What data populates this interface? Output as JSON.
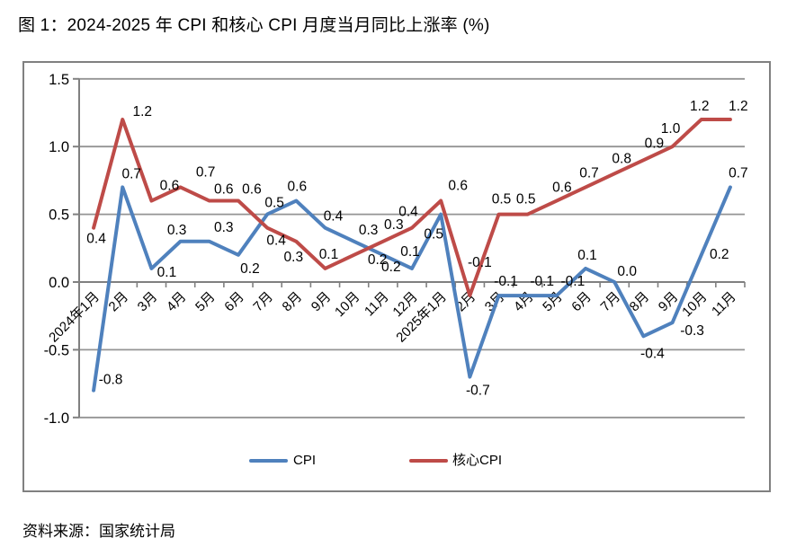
{
  "page": {
    "title": "图 1：2024-2025 年 CPI 和核心 CPI 月度当月同比上涨率 (%)",
    "source": "资料来源：国家统计局"
  },
  "chart_data": {
    "type": "line",
    "title": "",
    "categories": [
      "2024年1月",
      "2月",
      "3月",
      "4月",
      "5月",
      "6月",
      "7月",
      "8月",
      "9月",
      "10月",
      "11月",
      "12月",
      "2025年1月",
      "2月",
      "3月",
      "4月",
      "5月",
      "6月",
      "7月",
      "8月",
      "9月",
      "10月",
      "11月"
    ],
    "series": [
      {
        "name": "CPI",
        "color": "#4F81BD",
        "values": [
          -0.8,
          0.7,
          0.1,
          0.3,
          0.3,
          0.2,
          0.5,
          0.6,
          0.4,
          0.3,
          0.2,
          0.1,
          0.5,
          -0.7,
          -0.1,
          -0.1,
          -0.1,
          0.1,
          0.0,
          -0.4,
          -0.3,
          0.2,
          0.7
        ],
        "label_offsets": [
          [
            19,
            -7
          ],
          [
            10,
            -10
          ],
          [
            17,
            9
          ],
          [
            -4,
            -8
          ],
          [
            16,
            -11
          ],
          [
            13,
            20
          ],
          [
            8,
            -8
          ],
          [
            1,
            -11
          ],
          [
            9,
            -8
          ],
          [
            16,
            -8
          ],
          [
            9,
            18
          ],
          [
            -2,
            -14
          ],
          [
            -8,
            27
          ],
          [
            9,
            20
          ],
          [
            8,
            -11
          ],
          [
            16,
            -11
          ],
          [
            18,
            -11
          ],
          [
            2,
            -10
          ],
          [
            14,
            -7
          ],
          [
            10,
            24
          ],
          [
            22,
            14
          ],
          [
            20,
            4
          ],
          [
            9,
            -11
          ]
        ]
      },
      {
        "name": "核心CPI",
        "color": "#BE4B48",
        "values": [
          0.4,
          1.2,
          0.6,
          0.7,
          0.6,
          0.6,
          0.4,
          0.3,
          0.1,
          0.2,
          0.3,
          0.4,
          0.6,
          -0.1,
          0.5,
          0.5,
          0.6,
          0.7,
          0.8,
          0.9,
          1.0,
          1.2,
          1.2
        ],
        "label_offsets": [
          [
            3,
            17
          ],
          [
            22,
            -4
          ],
          [
            20,
            -12
          ],
          [
            28,
            -12
          ],
          [
            16,
            -8
          ],
          [
            15,
            -8
          ],
          [
            10,
            19
          ],
          [
            -3,
            22
          ],
          [
            4,
            -11
          ],
          [
            26,
            10
          ],
          [
            12,
            -14
          ],
          [
            -4,
            -13
          ],
          [
            19,
            -12
          ],
          [
            11,
            -32
          ],
          [
            3,
            -12
          ],
          [
            -2,
            -12
          ],
          [
            6,
            -10
          ],
          [
            4,
            -11
          ],
          [
            8,
            -12
          ],
          [
            12,
            -14
          ],
          [
            -2,
            -15
          ],
          [
            -2,
            -10
          ],
          [
            9,
            -10
          ]
        ]
      }
    ],
    "ylim": [
      -1.0,
      1.5
    ],
    "yticks": [
      1.5,
      1.0,
      0.5,
      0.0,
      -0.5,
      -1.0
    ],
    "ytick_labels": [
      "1.5",
      "1.0",
      "0.5",
      "0.0",
      "-0.5",
      "-1.0"
    ],
    "grid": true,
    "data_labels": true,
    "label_decimals": 1,
    "legend_position": "bottom-inside",
    "axis_color": "#808080",
    "grid_color": "#949494",
    "frame_color": "#808080",
    "text_color": "#000000"
  }
}
